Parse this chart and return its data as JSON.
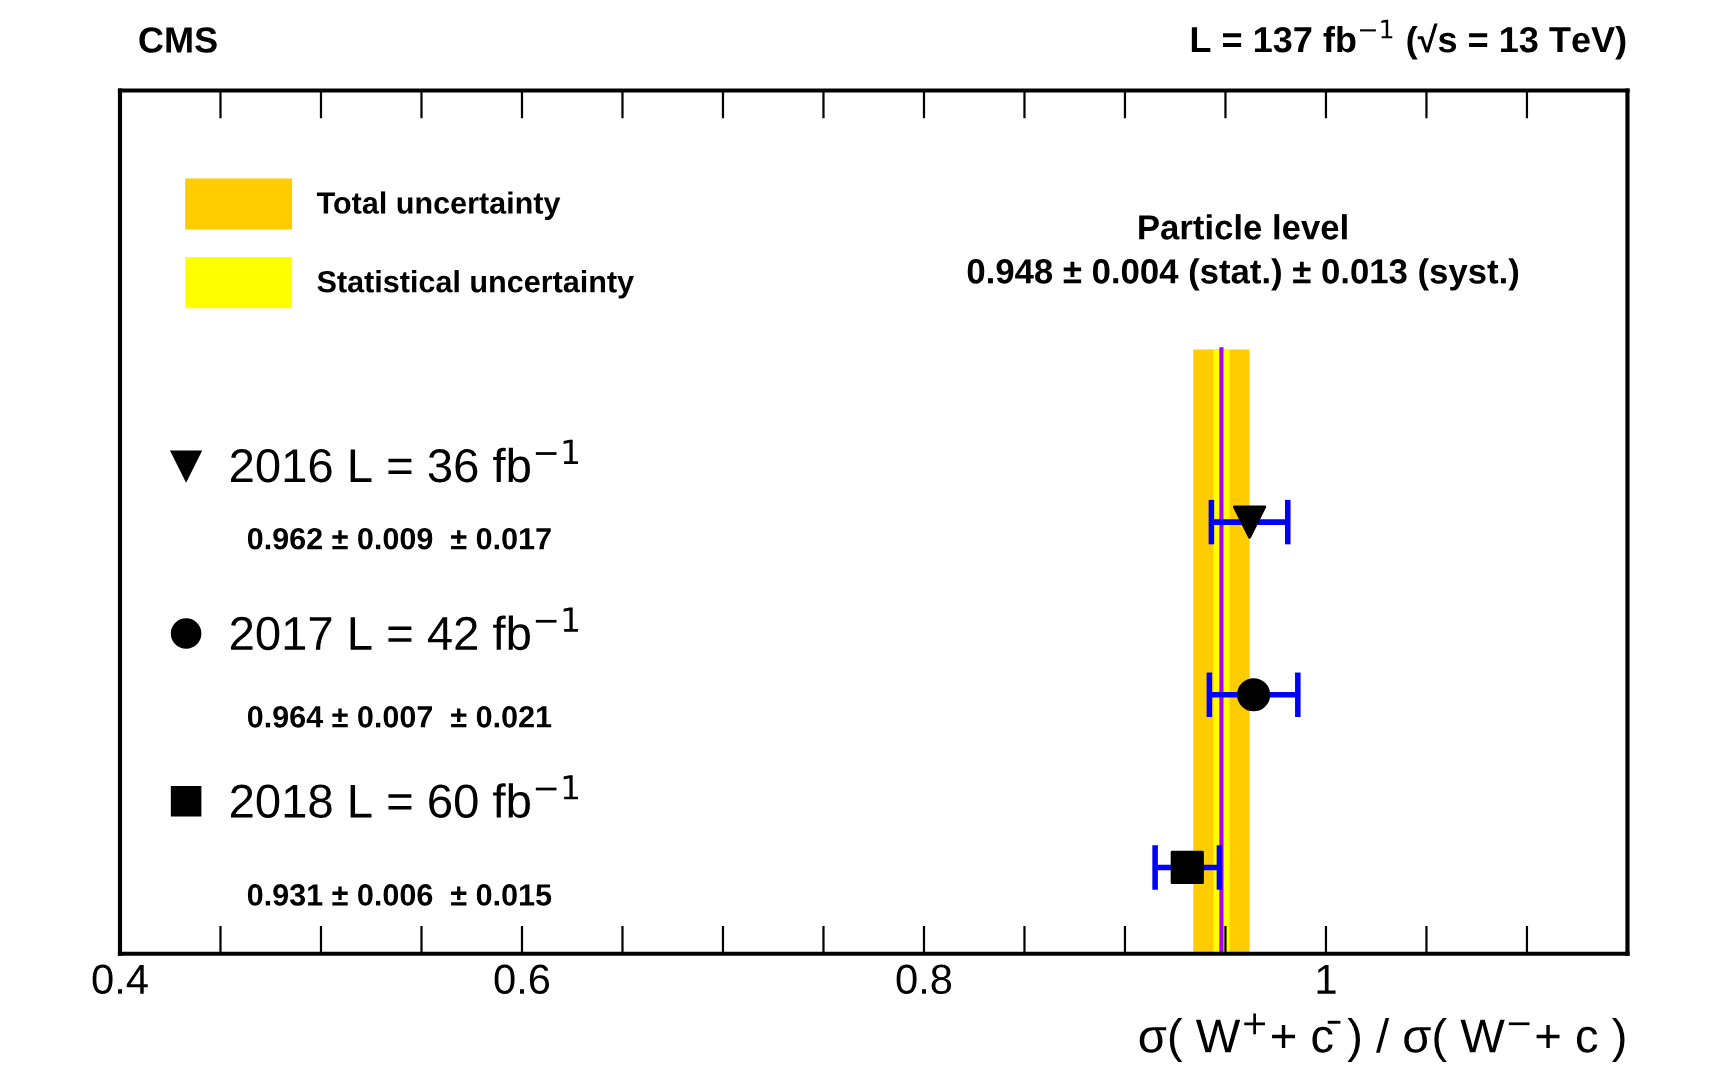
{
  "chart_data": {
    "type": "scatter",
    "orientation": "horizontal",
    "title": "CMS",
    "subtitle": "L = 137 fb$^{−1}$ (√s = 13 TeV)",
    "xlabel": "σ( W$^{+}$+ c̄ ) / σ( W$^{−}$+ c )",
    "categories": [
      null,
      null,
      null,
      null,
      null
    ],
    "series": [
      {
        "name": "2016 L = 36 fb$^{−1}$",
        "color": "#000000",
        "marker": "triangle",
        "values": [
          null,
          null,
          0.962,
          null,
          null
        ],
        "errors": [
          null,
          null,
          0.019,
          null,
          null
        ]
      },
      {
        "name": "2017 L = 42 fb$^{−1}$",
        "color": "#000000",
        "marker": "circle",
        "values": [
          null,
          null,
          null,
          0.964,
          null
        ],
        "errors": [
          null,
          null,
          null,
          0.022,
          null
        ]
      },
      {
        "name": "2018 L = 60 fb$^{−1}$",
        "color": "#000000",
        "marker": "square",
        "values": [
          null,
          null,
          null,
          null,
          0.931
        ],
        "errors": [
          null,
          null,
          null,
          null,
          0.016
        ]
      }
    ],
    "bands": [
      {
        "axis": "x",
        "from": 0.934,
        "to": 0.962,
        "label": "Total uncertainty",
        "color": "#ffcc00"
      },
      {
        "axis": "x",
        "from": 0.944,
        "to": 0.952,
        "label": "Statistical uncertainty",
        "color": "#ffff00"
      }
    ],
    "ref_lines": [
      {
        "axis": "x",
        "value": 0.948,
        "color": "#aa00ff"
      }
    ],
    "annotations": [
      "Particle level",
      "0.948 ± 0.004 (stat.) ± 0.013 (syst.)",
      "0.962 ± 0.009  ± 0.017",
      "0.964 ± 0.007  ± 0.021",
      "0.931 ± 0.006  ± 0.015"
    ],
    "xlim": [
      0.4,
      1.15
    ],
    "xticks": [
      0.4,
      {
        "value": 0.45,
        "label": null
      },
      {
        "value": 0.5,
        "label": null
      },
      {
        "value": 0.55,
        "label": null
      },
      0.6,
      {
        "value": 0.65,
        "label": null
      },
      {
        "value": 0.7,
        "label": null
      },
      {
        "value": 0.75,
        "label": null
      },
      0.8,
      {
        "value": 0.85,
        "label": null
      },
      {
        "value": 0.9,
        "label": null
      },
      {
        "value": 0.95,
        "label": null
      },
      {
        "value": 1,
        "label": "1"
      },
      {
        "value": 1.05,
        "label": null
      },
      {
        "value": 1.1,
        "label": null
      }
    ],
    "tick_labels": "x",
    "grid": false,
    "legend": "top left"
  }
}
